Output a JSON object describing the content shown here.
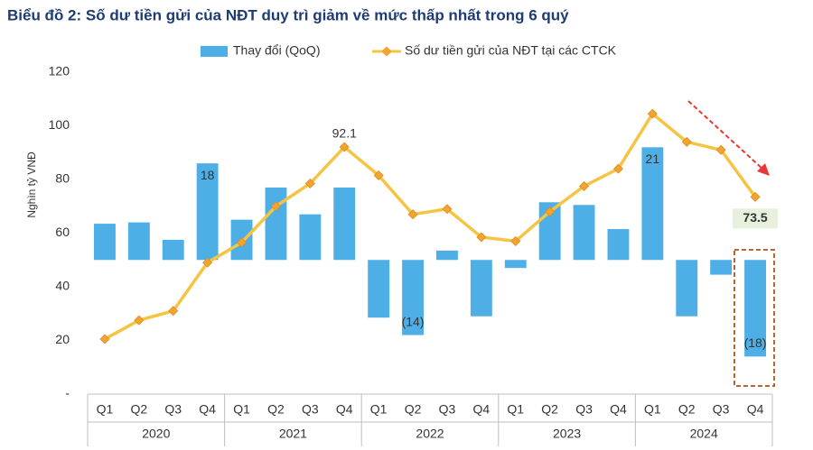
{
  "chart_data": {
    "type": "combo",
    "title": "Biểu đồ 2: Số dư tiền gửi của NĐT duy trì giảm về mức thấp nhất trong 6 quý",
    "y_label": "Nghìn tỷ VNĐ",
    "categories": [
      "Q1",
      "Q2",
      "Q3",
      "Q4",
      "Q1",
      "Q2",
      "Q3",
      "Q4",
      "Q1",
      "Q2",
      "Q3",
      "Q4",
      "Q1",
      "Q2",
      "Q3",
      "Q4",
      "Q1",
      "Q2",
      "Q3",
      "Q4"
    ],
    "groups": [
      "2020",
      "2021",
      "2022",
      "2023",
      "2024"
    ],
    "ylim": [
      0,
      120
    ],
    "yticks": [
      {
        "value": 0,
        "label": "-"
      },
      20,
      40,
      60,
      80,
      100,
      120
    ],
    "y2lim": [
      -25,
      35
    ],
    "series": [
      {
        "name": "Thay đổi (QoQ)",
        "type": "bar",
        "axis": "y2",
        "color": "#4eaee6",
        "values": [
          6.75,
          7,
          3.75,
          18,
          7.5,
          13.5,
          8.5,
          13.5,
          -10.75,
          -14,
          1.75,
          -10.5,
          -1.5,
          10.75,
          10.25,
          5.75,
          21,
          -10.5,
          -2.75,
          -18
        ],
        "value_labels": [
          null,
          null,
          null,
          "18",
          null,
          null,
          null,
          null,
          null,
          "(14)",
          null,
          null,
          null,
          null,
          null,
          null,
          "21",
          null,
          null,
          "(18)"
        ]
      },
      {
        "name": "Số dư tiền gửi của NĐT tại các CTCK",
        "type": "line",
        "color": "#f5c443",
        "marker_color": "#f0a530",
        "values": [
          20.5,
          27.5,
          31,
          49,
          56.5,
          70,
          78.5,
          92.1,
          81.5,
          67,
          69,
          58.5,
          57,
          68,
          77.5,
          84,
          104.5,
          94,
          91,
          73.5
        ],
        "value_labels": [
          null,
          null,
          null,
          null,
          null,
          null,
          null,
          "92.1",
          null,
          null,
          null,
          null,
          null,
          null,
          null,
          null,
          null,
          null,
          null,
          "73.5"
        ]
      }
    ]
  }
}
